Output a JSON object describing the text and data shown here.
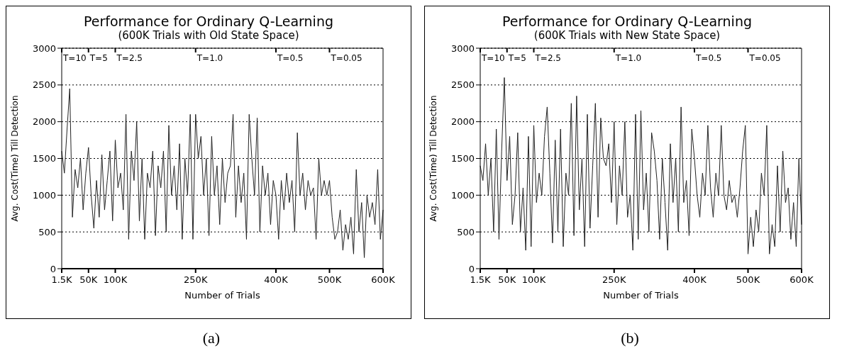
{
  "chart_data": [
    {
      "type": "line",
      "title": "Performance for Ordinary Q-Learning",
      "subtitle": "(600K Trials with Old State Space)",
      "xlabel": "Number of Trials",
      "ylabel": "Avg. Cost(Time) Till Detection",
      "categories": [
        "1.5K",
        null,
        null,
        null,
        null,
        null,
        null,
        null,
        null,
        null,
        "50K",
        null,
        null,
        null,
        null,
        null,
        null,
        null,
        null,
        null,
        "100K",
        null,
        null,
        null,
        null,
        null,
        null,
        null,
        null,
        null,
        null,
        null,
        null,
        null,
        null,
        null,
        null,
        null,
        null,
        null,
        null,
        null,
        null,
        null,
        null,
        null,
        null,
        null,
        null,
        null,
        "250K",
        null,
        null,
        null,
        null,
        null,
        null,
        null,
        null,
        null,
        null,
        null,
        null,
        null,
        null,
        null,
        null,
        null,
        null,
        null,
        null,
        null,
        null,
        null,
        null,
        null,
        null,
        null,
        null,
        null,
        "400K",
        null,
        null,
        null,
        null,
        null,
        null,
        null,
        null,
        null,
        null,
        null,
        null,
        null,
        null,
        null,
        null,
        null,
        null,
        null,
        "500K",
        null,
        null,
        null,
        null,
        null,
        null,
        null,
        null,
        null,
        null,
        null,
        null,
        null,
        null,
        null,
        null,
        null,
        null,
        null,
        "600K"
      ],
      "series": [
        {
          "color": "#222222",
          "values": [
            1600,
            1300,
            1900,
            2450,
            700,
            1350,
            1100,
            1500,
            800,
            1300,
            1650,
            1000,
            550,
            1200,
            700,
            1550,
            800,
            1200,
            1600,
            650,
            1750,
            1100,
            1300,
            800,
            2100,
            400,
            1600,
            1200,
            2000,
            650,
            1500,
            400,
            1300,
            1100,
            1600,
            450,
            1400,
            1100,
            1600,
            500,
            1950,
            1000,
            1400,
            800,
            1700,
            400,
            1500,
            1000,
            2100,
            400,
            2100,
            1500,
            1800,
            1000,
            1500,
            450,
            1800,
            1000,
            1400,
            600,
            1500,
            900,
            1300,
            1400,
            2100,
            700,
            1400,
            900,
            1300,
            400,
            2100,
            1500,
            1000,
            2050,
            500,
            1400,
            1000,
            1300,
            600,
            1200,
            1000,
            400,
            1200,
            800,
            1300,
            900,
            1200,
            500,
            1850,
            1000,
            1300,
            800,
            1200,
            1000,
            1100,
            400,
            1500,
            1000,
            1200,
            1000,
            1200,
            700,
            400,
            500,
            800,
            250,
            600,
            400,
            700,
            200,
            1350,
            500,
            900,
            150,
            1000,
            700,
            900,
            600,
            1350,
            400,
            800
          ]
        }
      ],
      "ylim": [
        0,
        3000
      ],
      "yticks": [
        0,
        500,
        1000,
        1500,
        2000,
        2500,
        3000
      ],
      "grid": "y",
      "marker": "none",
      "line_style": "solid",
      "legend": false,
      "annotations": [
        "T=10",
        "T=5",
        "T=2.5",
        "T=1.0",
        "T=0.5",
        "T=0.05",
        "(a)"
      ]
    },
    {
      "type": "line",
      "title": "Performance for Ordinary Q-Learning",
      "subtitle": "(600K Trials with New State Space)",
      "xlabel": "Number of Trials",
      "ylabel": "Avg. Cost(Time) Till Detection",
      "categories": [
        "1.5K",
        null,
        null,
        null,
        null,
        null,
        null,
        null,
        null,
        null,
        "50K",
        null,
        null,
        null,
        null,
        null,
        null,
        null,
        null,
        null,
        "100K",
        null,
        null,
        null,
        null,
        null,
        null,
        null,
        null,
        null,
        null,
        null,
        null,
        null,
        null,
        null,
        null,
        null,
        null,
        null,
        null,
        null,
        null,
        null,
        null,
        null,
        null,
        null,
        null,
        null,
        "250K",
        null,
        null,
        null,
        null,
        null,
        null,
        null,
        null,
        null,
        null,
        null,
        null,
        null,
        null,
        null,
        null,
        null,
        null,
        null,
        null,
        null,
        null,
        null,
        null,
        null,
        null,
        null,
        null,
        null,
        "400K",
        null,
        null,
        null,
        null,
        null,
        null,
        null,
        null,
        null,
        null,
        null,
        null,
        null,
        null,
        null,
        null,
        null,
        null,
        null,
        "500K",
        null,
        null,
        null,
        null,
        null,
        null,
        null,
        null,
        null,
        null,
        null,
        null,
        null,
        null,
        null,
        null,
        null,
        null,
        null,
        "600K"
      ],
      "series": [
        {
          "color": "#222222",
          "values": [
            1400,
            1200,
            1700,
            1000,
            1500,
            500,
            1900,
            400,
            1600,
            2600,
            1200,
            1800,
            600,
            1000,
            1850,
            500,
            1100,
            250,
            1800,
            300,
            1950,
            900,
            1300,
            1000,
            1800,
            2200,
            1300,
            350,
            1750,
            500,
            1900,
            300,
            1300,
            1000,
            2250,
            450,
            2350,
            800,
            1500,
            300,
            2100,
            550,
            1400,
            2250,
            700,
            2050,
            1500,
            1400,
            1700,
            900,
            2000,
            600,
            1400,
            1000,
            2000,
            700,
            1000,
            250,
            2100,
            400,
            2150,
            800,
            1300,
            500,
            1850,
            1600,
            1200,
            400,
            1500,
            900,
            250,
            1700,
            900,
            1500,
            500,
            2200,
            900,
            1200,
            450,
            1900,
            1500,
            1000,
            700,
            1300,
            1000,
            1950,
            1100,
            700,
            1300,
            1000,
            1950,
            1000,
            800,
            1200,
            900,
            1000,
            700,
            1100,
            1600,
            1950,
            200,
            700,
            300,
            800,
            500,
            1300,
            1000,
            1950,
            200,
            600,
            300,
            1400,
            500,
            1600,
            900,
            1100,
            400,
            900,
            300,
            1500,
            600
          ]
        }
      ],
      "ylim": [
        0,
        3000
      ],
      "yticks": [
        0,
        500,
        1000,
        1500,
        2000,
        2500,
        3000
      ],
      "grid": "y",
      "marker": "none",
      "line_style": "solid",
      "legend": false,
      "annotations": [
        "T=10",
        "T=5",
        "T=2.5",
        "T=1.0",
        "T=0.5",
        "T=0.05",
        "(b)"
      ]
    }
  ]
}
